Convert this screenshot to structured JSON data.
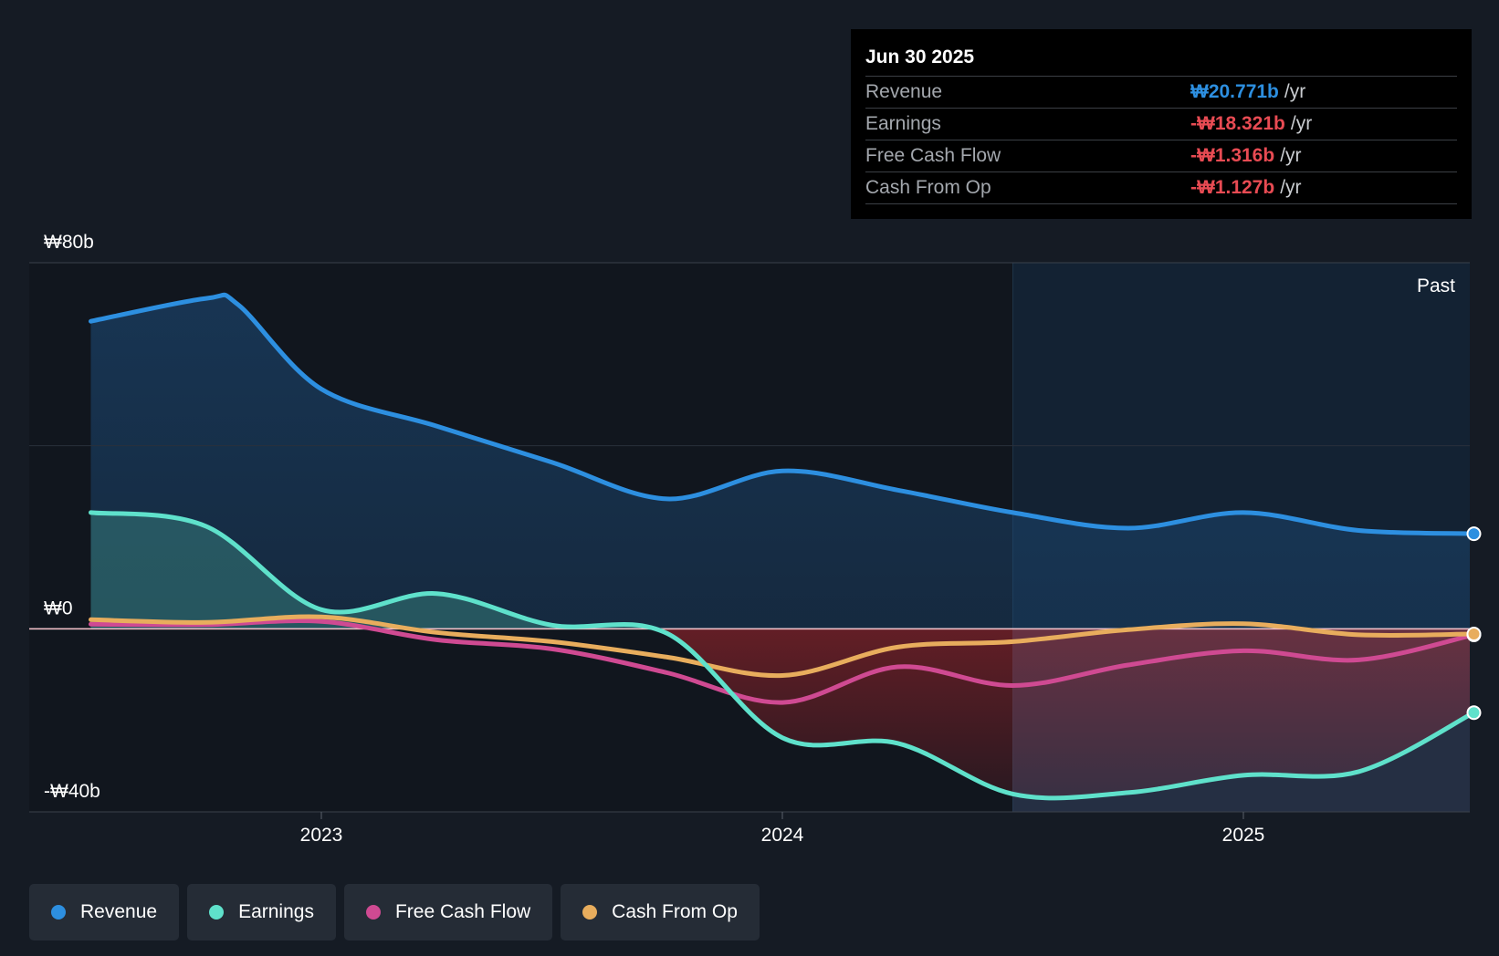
{
  "chart_data": {
    "type": "area",
    "period_label": "Past",
    "x_ticks": [
      2023,
      2024,
      2025
    ],
    "y_ticks": [
      {
        "value": 80,
        "label": "₩80b"
      },
      {
        "value": 0,
        "label": "₩0"
      },
      {
        "value": -40,
        "label": "-₩40b"
      }
    ],
    "ylim": [
      -40,
      80
    ],
    "xlim": [
      2022.44,
      2025.5
    ],
    "highlight_start": 2024.5,
    "series": [
      {
        "name": "Revenue",
        "color": "#2d8fe0",
        "points": [
          [
            2022.5,
            67.2
          ],
          [
            2022.75,
            72.2
          ],
          [
            2022.82,
            70.8
          ],
          [
            2023.0,
            52.4
          ],
          [
            2023.25,
            44.3
          ],
          [
            2023.5,
            36.4
          ],
          [
            2023.75,
            28.4
          ],
          [
            2024.0,
            34.5
          ],
          [
            2024.25,
            30.3
          ],
          [
            2024.5,
            25.4
          ],
          [
            2024.75,
            22.0
          ],
          [
            2025.0,
            25.4
          ],
          [
            2025.25,
            21.5
          ],
          [
            2025.5,
            20.771
          ]
        ]
      },
      {
        "name": "Earnings",
        "color": "#5fe1cb",
        "points": [
          [
            2022.5,
            25.4
          ],
          [
            2022.75,
            22.4
          ],
          [
            2023.0,
            4.2
          ],
          [
            2023.25,
            7.7
          ],
          [
            2023.5,
            0.8
          ],
          [
            2023.75,
            -1.0
          ],
          [
            2024.0,
            -23.8
          ],
          [
            2024.25,
            -25.0
          ],
          [
            2024.5,
            -36.1
          ],
          [
            2024.75,
            -35.8
          ],
          [
            2025.0,
            -32.0
          ],
          [
            2025.25,
            -31.2
          ],
          [
            2025.5,
            -18.321
          ]
        ]
      },
      {
        "name": "Free Cash Flow",
        "color": "#cf4a92",
        "points": [
          [
            2022.5,
            1.0
          ],
          [
            2022.75,
            0.9
          ],
          [
            2023.0,
            1.6
          ],
          [
            2023.25,
            -2.4
          ],
          [
            2023.5,
            -4.4
          ],
          [
            2023.75,
            -9.6
          ],
          [
            2024.0,
            -16.1
          ],
          [
            2024.25,
            -8.3
          ],
          [
            2024.5,
            -12.4
          ],
          [
            2024.75,
            -7.9
          ],
          [
            2025.0,
            -4.8
          ],
          [
            2025.25,
            -6.8
          ],
          [
            2025.5,
            -1.316
          ]
        ]
      },
      {
        "name": "Cash From Op",
        "color": "#e8ad5d",
        "points": [
          [
            2022.5,
            2.0
          ],
          [
            2022.75,
            1.4
          ],
          [
            2023.0,
            2.6
          ],
          [
            2023.25,
            -0.8
          ],
          [
            2023.5,
            -2.8
          ],
          [
            2023.75,
            -6.2
          ],
          [
            2024.0,
            -10.2
          ],
          [
            2024.25,
            -4.0
          ],
          [
            2024.5,
            -2.8
          ],
          [
            2024.75,
            -0.2
          ],
          [
            2025.0,
            1.1
          ],
          [
            2025.25,
            -1.3
          ],
          [
            2025.5,
            -1.127
          ]
        ]
      }
    ]
  },
  "tooltip": {
    "date": "Jun 30 2025",
    "rows": [
      {
        "label": "Revenue",
        "value": "₩20.771b",
        "unit": "/yr",
        "color": "#2d8fe0"
      },
      {
        "label": "Earnings",
        "value": "-₩18.321b",
        "unit": "/yr",
        "color": "#e84b53"
      },
      {
        "label": "Free Cash Flow",
        "value": "-₩1.316b",
        "unit": "/yr",
        "color": "#e84b53"
      },
      {
        "label": "Cash From Op",
        "value": "-₩1.127b",
        "unit": "/yr",
        "color": "#e84b53"
      }
    ]
  },
  "legend": [
    {
      "label": "Revenue",
      "color": "#2d8fe0"
    },
    {
      "label": "Earnings",
      "color": "#5fe1cb"
    },
    {
      "label": "Free Cash Flow",
      "color": "#cf4a92"
    },
    {
      "label": "Cash From Op",
      "color": "#e8ad5d"
    }
  ]
}
